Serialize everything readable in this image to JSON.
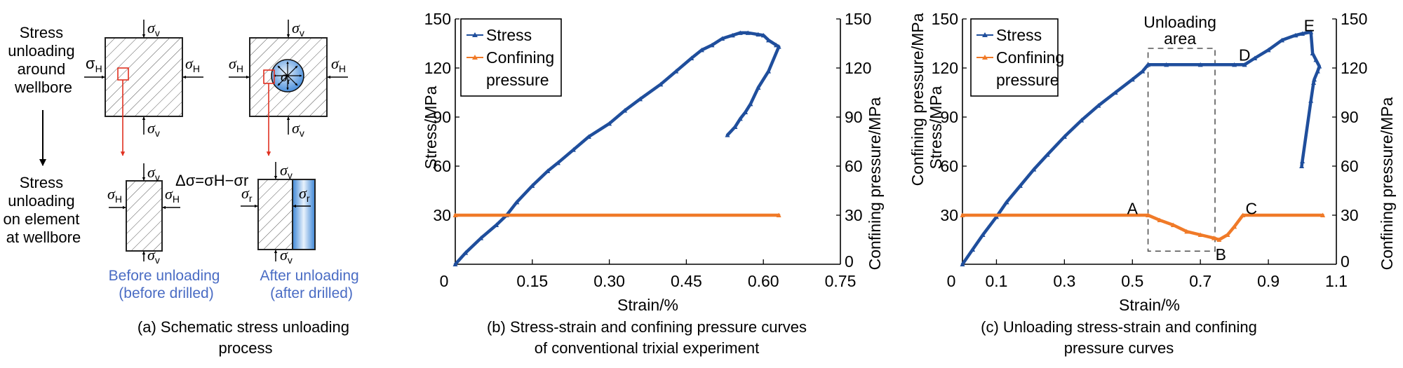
{
  "colors": {
    "stress": "#1f4e9c",
    "confining": "#f07a28",
    "caption_blue": "#4a6cc4",
    "marker_red": "#e03020",
    "fluid_blue": "#4a90d9",
    "dashed_box": "#555555"
  },
  "panel_a": {
    "left_label_top": [
      "Stress",
      "unloading",
      "around",
      "wellbore"
    ],
    "left_label_bottom": [
      "Stress",
      "unloading",
      "on element",
      "at wellbore"
    ],
    "sigma_v": "σ",
    "sigma_v_sub": "v",
    "sigma_H": "σ",
    "sigma_H_sub": "H",
    "sigma_r": "σ",
    "sigma_r_sub": "r",
    "equation": "Δσ=σH−σr",
    "before_label": [
      "Before unloading",
      "(before drilled)"
    ],
    "after_label": [
      "After unloading",
      "(after drilled)"
    ],
    "caption": [
      "(a) Schematic stress unloading",
      "process"
    ]
  },
  "chart_data": [
    {
      "type": "line",
      "id": "b",
      "title": "",
      "caption": [
        "(b) Stress-strain and confining pressure curves",
        "of conventional trixial experiment"
      ],
      "xlabel": "Strain/%",
      "ylabel": "Stress/MPa",
      "y2label": "Confining pressure/MPa",
      "xlim": [
        0,
        0.75
      ],
      "ylim": [
        0,
        150
      ],
      "y2lim": [
        0,
        150
      ],
      "xticks": [
        "0",
        "0.15",
        "0.30",
        "0.45",
        "0.60",
        "0.75"
      ],
      "xtick_values": [
        0,
        0.15,
        0.3,
        0.45,
        0.6,
        0.75
      ],
      "yticks": [
        "0",
        "30",
        "60",
        "90",
        "120",
        "150"
      ],
      "ytick_values": [
        0,
        30,
        60,
        90,
        120,
        150
      ],
      "legend": {
        "placement": "top-left",
        "entries": [
          "Stress",
          "Confining",
          "pressure"
        ]
      },
      "series": [
        {
          "name": "Stress",
          "x": [
            0,
            0.02,
            0.05,
            0.08,
            0.1,
            0.12,
            0.15,
            0.18,
            0.2,
            0.23,
            0.26,
            0.3,
            0.33,
            0.36,
            0.4,
            0.43,
            0.46,
            0.48,
            0.5,
            0.52,
            0.54,
            0.555,
            0.57,
            0.59,
            0.6,
            0.61,
            0.625,
            0.63,
            0.61,
            0.59,
            0.575,
            0.565,
            0.555,
            0.545,
            0.53
          ],
          "y": [
            0,
            7,
            16,
            24,
            30,
            38,
            48,
            57,
            62,
            70,
            78,
            86,
            94,
            101,
            110,
            118,
            126,
            131,
            134,
            138,
            140,
            141.5,
            141.5,
            140.5,
            140,
            137,
            134,
            133,
            118,
            108,
            98,
            93,
            89,
            84,
            79
          ]
        },
        {
          "name": "Confining pressure",
          "x": [
            0,
            0.63
          ],
          "y": [
            30,
            30
          ]
        }
      ]
    },
    {
      "type": "line",
      "id": "c",
      "title": "",
      "caption": [
        "(c) Unloading stress-strain and confining",
        "pressure curves"
      ],
      "xlabel": "Strain/%",
      "ylabel": "Confining pressure/MPa",
      "ylabel2": "Stress/MPa",
      "y2label": "Confining pressure/MPa",
      "xlim": [
        0,
        1.1
      ],
      "ylim": [
        0,
        150
      ],
      "y2lim": [
        0,
        150
      ],
      "xticks": [
        "0",
        "0.1",
        "0.3",
        "0.5",
        "0.7",
        "0.9",
        "1.1"
      ],
      "xtick_values": [
        0,
        0.1,
        0.3,
        0.5,
        0.7,
        0.9,
        1.1
      ],
      "yticks": [
        "0",
        "30",
        "60",
        "90",
        "120",
        "150"
      ],
      "ytick_values": [
        0,
        30,
        60,
        90,
        120,
        150
      ],
      "legend": {
        "placement": "top-left",
        "entries": [
          "Stress",
          "Confining",
          "pressure"
        ]
      },
      "annotations": [
        {
          "label": "Unloading",
          "x": 0.64,
          "y": 148
        },
        {
          "label": "area",
          "x": 0.64,
          "y": 138
        },
        {
          "label": "A",
          "x": 0.5,
          "y": 34
        },
        {
          "label": "B",
          "x": 0.76,
          "y": 6
        },
        {
          "label": "C",
          "x": 0.85,
          "y": 34
        },
        {
          "label": "D",
          "x": 0.83,
          "y": 128
        },
        {
          "label": "E",
          "x": 1.02,
          "y": 146
        }
      ],
      "unloading_box": {
        "x": [
          0.546,
          0.743
        ],
        "y": [
          8,
          132
        ]
      },
      "series": [
        {
          "name": "Stress",
          "x": [
            0,
            0.03,
            0.06,
            0.1,
            0.13,
            0.17,
            0.21,
            0.25,
            0.3,
            0.35,
            0.4,
            0.45,
            0.5,
            0.53,
            0.546,
            0.6,
            0.7,
            0.8,
            0.83,
            0.86,
            0.9,
            0.94,
            0.98,
            1.0,
            1.025,
            1.03,
            1.04,
            1.05,
            1.045,
            1.035,
            1.033,
            1.025,
            1.0,
            0.998
          ],
          "y": [
            0,
            9,
            18,
            29,
            38,
            48,
            58,
            67,
            78,
            88,
            97,
            105,
            113,
            118,
            122,
            122,
            122,
            122,
            122,
            126,
            131,
            137,
            140,
            141,
            142,
            129,
            125,
            121,
            118,
            113,
            111,
            100,
            63,
            60
          ]
        },
        {
          "name": "Confining pressure",
          "x": [
            0,
            0.546,
            0.58,
            0.62,
            0.66,
            0.7,
            0.74,
            0.755,
            0.78,
            0.8,
            0.825,
            1.06
          ],
          "y": [
            30,
            30,
            27,
            24,
            20,
            18,
            16,
            15,
            18,
            23,
            30,
            30
          ]
        }
      ]
    }
  ]
}
